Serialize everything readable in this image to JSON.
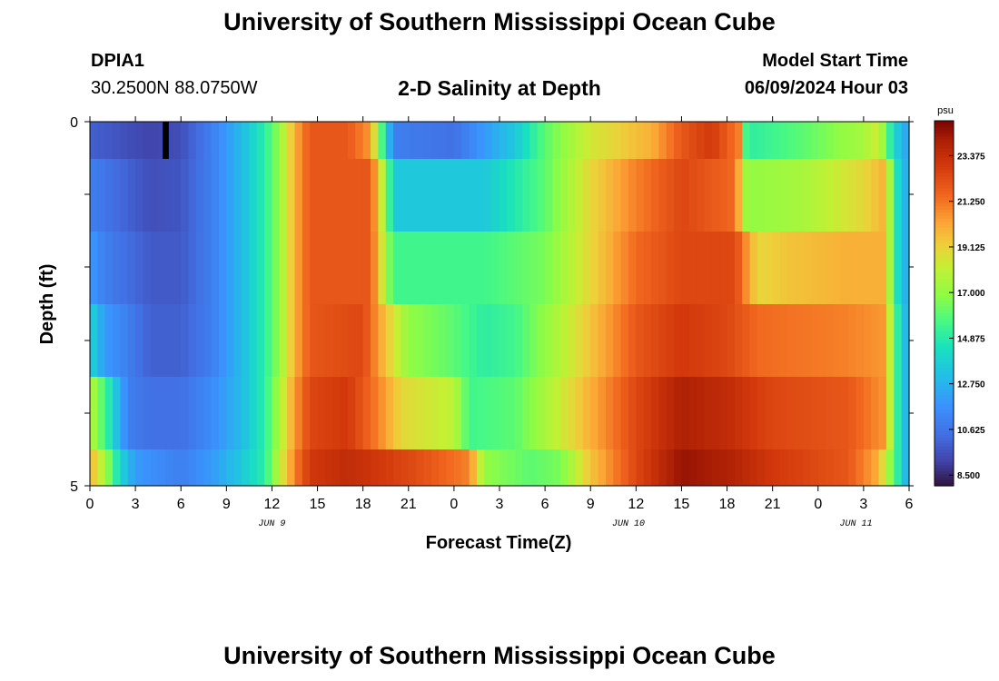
{
  "page": {
    "title_top": "University of Southern Mississippi Ocean Cube",
    "title_bottom": "University of Southern Mississippi Ocean Cube",
    "station": "DPIA1",
    "coords": "30.2500N  88.0750W",
    "plot_title": "2-D Salinity at Depth",
    "model_label": "Model Start Time",
    "model_time": "06/09/2024 Hour 03"
  },
  "chart_data": {
    "type": "heatmap",
    "title": "2-D Salinity at Depth",
    "xlabel": "Forecast Time(Z)",
    "ylabel": "Depth (ft)",
    "x_tick_labels": [
      "0",
      "3",
      "6",
      "9",
      "12",
      "15",
      "18",
      "21",
      "0",
      "3",
      "6",
      "9",
      "12",
      "15",
      "18",
      "21",
      "0",
      "3",
      "6"
    ],
    "x_date_labels": [
      {
        "label": "JUN 9",
        "hour": 12
      },
      {
        "label": "JUN 10",
        "hour": 35.5
      },
      {
        "label": "JUN 11",
        "hour": 50.5
      }
    ],
    "x_range_hours": [
      0,
      54
    ],
    "y_range_ft": [
      0,
      5
    ],
    "y_tick_labels": [
      "0",
      "5"
    ],
    "depth_levels_ft": [
      0,
      1,
      2,
      3,
      4,
      5
    ],
    "colorbar": {
      "unit": "psu",
      "min": 8.0,
      "max": 25.0,
      "tick_labels": [
        "23.375",
        "21.250",
        "19.125",
        "17.000",
        "14.875",
        "12.750",
        "10.625",
        "8.500"
      ],
      "tick_values": [
        23.375,
        21.25,
        19.125,
        17.0,
        14.875,
        12.75,
        10.625,
        8.5
      ]
    },
    "salinity_psu_by_depth": [
      {
        "depth_ft": 0,
        "points": [
          [
            0,
            10
          ],
          [
            4,
            9.2
          ],
          [
            6,
            9.5
          ],
          [
            8,
            11
          ],
          [
            10,
            13
          ],
          [
            11.5,
            15
          ],
          [
            12.5,
            17
          ],
          [
            13.5,
            20
          ],
          [
            14.5,
            22
          ],
          [
            17,
            22
          ],
          [
            18.5,
            20.5
          ],
          [
            19.2,
            16
          ],
          [
            20,
            11
          ],
          [
            24,
            10.5
          ],
          [
            28,
            13.5
          ],
          [
            30,
            16
          ],
          [
            33,
            18.5
          ],
          [
            37,
            20
          ],
          [
            39,
            22
          ],
          [
            41,
            23
          ],
          [
            42.8,
            21
          ],
          [
            43.3,
            15
          ],
          [
            47,
            16
          ],
          [
            51,
            17.5
          ],
          [
            52,
            18.5
          ],
          [
            53,
            14
          ],
          [
            54,
            12
          ]
        ]
      },
      {
        "depth_ft": 1,
        "points": [
          [
            0,
            11
          ],
          [
            4,
            9.5
          ],
          [
            6,
            9.7
          ],
          [
            8,
            11
          ],
          [
            10,
            13
          ],
          [
            11.5,
            15
          ],
          [
            12.5,
            17
          ],
          [
            13.5,
            20
          ],
          [
            14.5,
            22
          ],
          [
            18.5,
            22
          ],
          [
            19.5,
            17
          ],
          [
            20,
            13.5
          ],
          [
            26,
            13.5
          ],
          [
            30,
            16
          ],
          [
            33,
            19
          ],
          [
            36,
            21
          ],
          [
            39,
            22.5
          ],
          [
            42.5,
            21.5
          ],
          [
            43.3,
            17
          ],
          [
            47,
            17.5
          ],
          [
            51,
            19
          ],
          [
            52.5,
            20
          ],
          [
            53,
            15
          ],
          [
            54,
            12
          ]
        ]
      },
      {
        "depth_ft": 2,
        "points": [
          [
            0,
            12
          ],
          [
            1,
            11
          ],
          [
            4,
            9.8
          ],
          [
            6,
            9.8
          ],
          [
            8,
            11
          ],
          [
            10,
            13
          ],
          [
            11.5,
            15
          ],
          [
            12.5,
            17
          ],
          [
            13.5,
            20
          ],
          [
            14.5,
            22
          ],
          [
            18.5,
            22
          ],
          [
            19.6,
            17
          ],
          [
            20,
            15.5
          ],
          [
            26,
            15.5
          ],
          [
            30,
            16.5
          ],
          [
            33,
            19
          ],
          [
            36,
            21.5
          ],
          [
            39,
            22.5
          ],
          [
            42.5,
            22.5
          ],
          [
            44,
            19
          ],
          [
            46,
            19.5
          ],
          [
            50,
            20
          ],
          [
            52.5,
            20
          ],
          [
            53,
            15
          ],
          [
            54,
            12
          ]
        ]
      },
      {
        "depth_ft": 3,
        "points": [
          [
            0,
            14
          ],
          [
            1,
            12
          ],
          [
            4,
            10
          ],
          [
            6,
            10
          ],
          [
            8,
            11
          ],
          [
            10,
            13
          ],
          [
            11.5,
            15
          ],
          [
            12.5,
            17
          ],
          [
            13.5,
            20
          ],
          [
            14.5,
            22
          ],
          [
            18,
            22.5
          ],
          [
            19.5,
            19.5
          ],
          [
            21,
            17
          ],
          [
            24,
            16
          ],
          [
            26,
            15
          ],
          [
            28,
            15.5
          ],
          [
            30,
            17
          ],
          [
            33,
            19.5
          ],
          [
            36,
            22
          ],
          [
            39,
            23
          ],
          [
            42,
            22.5
          ],
          [
            44,
            21.5
          ],
          [
            50,
            21
          ],
          [
            52.5,
            20.5
          ],
          [
            53,
            16
          ],
          [
            54,
            12
          ]
        ]
      },
      {
        "depth_ft": 4,
        "points": [
          [
            0,
            18
          ],
          [
            1.2,
            15
          ],
          [
            2.5,
            11
          ],
          [
            4,
            10.5
          ],
          [
            6,
            10.5
          ],
          [
            8,
            11.5
          ],
          [
            10,
            13
          ],
          [
            11.5,
            15
          ],
          [
            12.5,
            17.5
          ],
          [
            13.5,
            20.5
          ],
          [
            14.5,
            22.5
          ],
          [
            17,
            23
          ],
          [
            19,
            21
          ],
          [
            20.5,
            19
          ],
          [
            24,
            18
          ],
          [
            25,
            15.5
          ],
          [
            28,
            16
          ],
          [
            30,
            17.5
          ],
          [
            33,
            20
          ],
          [
            36,
            22.5
          ],
          [
            39,
            24
          ],
          [
            42,
            23.5
          ],
          [
            45,
            22.5
          ],
          [
            50,
            22
          ],
          [
            52.5,
            20.5
          ],
          [
            53,
            16
          ],
          [
            54,
            12
          ]
        ]
      },
      {
        "depth_ft": 5,
        "points": [
          [
            0,
            20
          ],
          [
            1,
            17.5
          ],
          [
            2,
            14
          ],
          [
            3,
            12
          ],
          [
            6,
            11
          ],
          [
            8,
            12
          ],
          [
            10,
            13.5
          ],
          [
            11.5,
            15
          ],
          [
            12.5,
            18
          ],
          [
            13.5,
            21
          ],
          [
            14.5,
            23
          ],
          [
            17,
            23.5
          ],
          [
            21,
            22.5
          ],
          [
            25,
            21
          ],
          [
            26,
            17
          ],
          [
            29,
            16
          ],
          [
            31,
            16.5
          ],
          [
            33,
            19.5
          ],
          [
            36,
            22.5
          ],
          [
            39,
            24.5
          ],
          [
            42,
            24
          ],
          [
            45,
            23
          ],
          [
            50,
            22
          ],
          [
            52,
            20
          ],
          [
            53,
            16
          ],
          [
            54,
            12
          ]
        ]
      }
    ],
    "missing_data": [
      {
        "depth_ft": 0,
        "hour_start": 4.8,
        "hour_end": 5.2
      }
    ]
  }
}
